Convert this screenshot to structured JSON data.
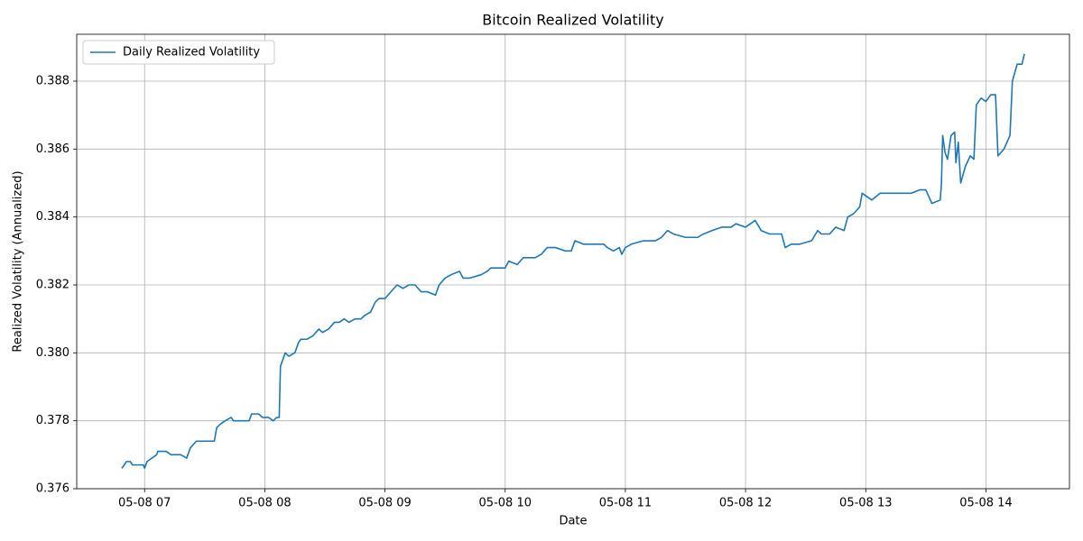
{
  "chart_data": {
    "type": "line",
    "title": "Bitcoin Realized Volatility",
    "x_label": "Date",
    "y_label": "Realized Volatility (Annualized)",
    "legend": "upper left",
    "grid": true,
    "xlim": [
      6.435,
      14.695
    ],
    "ylim": [
      0.376,
      0.38938
    ],
    "xticks": [
      {
        "value": 7,
        "label": "05-08 07"
      },
      {
        "value": 8,
        "label": "05-08 08"
      },
      {
        "value": 9,
        "label": "05-08 09"
      },
      {
        "value": 10,
        "label": "05-08 10"
      },
      {
        "value": 11,
        "label": "05-08 11"
      },
      {
        "value": 12,
        "label": "05-08 12"
      },
      {
        "value": 13,
        "label": "05-08 13"
      },
      {
        "value": 14,
        "label": "05-08 14"
      }
    ],
    "yticks": [
      0.376,
      0.378,
      {
        "value": 0.38,
        "label": "0.380"
      },
      0.382,
      0.384,
      0.386,
      0.388
    ],
    "x": [
      6.81,
      6.83,
      6.85,
      6.88,
      6.9,
      6.95,
      6.99,
      7.0,
      7.02,
      7.06,
      7.1,
      7.11,
      7.18,
      7.22,
      7.3,
      7.35,
      7.38,
      7.43,
      7.5,
      7.55,
      7.58,
      7.6,
      7.63,
      7.67,
      7.72,
      7.74,
      7.82,
      7.87,
      7.89,
      7.95,
      7.98,
      8.03,
      8.07,
      8.1,
      8.12,
      8.13,
      8.15,
      8.17,
      8.2,
      8.25,
      8.28,
      8.3,
      8.35,
      8.4,
      8.45,
      8.48,
      8.53,
      8.58,
      8.62,
      8.66,
      8.7,
      8.75,
      8.8,
      8.83,
      8.88,
      8.92,
      8.95,
      9.0,
      9.05,
      9.1,
      9.15,
      9.2,
      9.25,
      9.3,
      9.35,
      9.42,
      9.45,
      9.5,
      9.55,
      9.62,
      9.65,
      9.7,
      9.8,
      9.85,
      9.88,
      9.92,
      10.0,
      10.03,
      10.1,
      10.15,
      10.25,
      10.3,
      10.35,
      10.42,
      10.5,
      10.55,
      10.58,
      10.65,
      10.75,
      10.82,
      10.85,
      10.9,
      10.95,
      10.97,
      11.0,
      11.05,
      11.15,
      11.25,
      11.3,
      11.35,
      11.4,
      11.5,
      11.6,
      11.65,
      11.72,
      11.8,
      11.88,
      11.92,
      12.0,
      12.04,
      12.08,
      12.13,
      12.2,
      12.3,
      12.33,
      12.38,
      12.45,
      12.55,
      12.6,
      12.63,
      12.7,
      12.75,
      12.82,
      12.85,
      12.9,
      12.95,
      12.97,
      13.05,
      13.12,
      13.2,
      13.3,
      13.38,
      13.45,
      13.5,
      13.55,
      13.62,
      13.63,
      13.64,
      13.66,
      13.68,
      13.71,
      13.74,
      13.75,
      13.77,
      13.79,
      13.83,
      13.87,
      13.9,
      13.92,
      13.96,
      14.0,
      14.04,
      14.08,
      14.1,
      14.15,
      14.2,
      14.22,
      14.26,
      14.3,
      14.32
    ],
    "series": [
      {
        "name": "Daily Realized Volatility",
        "color": "#1f77b4",
        "values": [
          0.3766,
          0.3767,
          0.3768,
          0.3768,
          0.3767,
          0.3767,
          0.3767,
          0.3766,
          0.3768,
          0.3769,
          0.377,
          0.3771,
          0.3771,
          0.377,
          0.377,
          0.3769,
          0.3772,
          0.3774,
          0.3774,
          0.3774,
          0.3774,
          0.3778,
          0.3779,
          0.378,
          0.3781,
          0.378,
          0.378,
          0.378,
          0.3782,
          0.3782,
          0.3781,
          0.3781,
          0.378,
          0.3781,
          0.3781,
          0.3796,
          0.3798,
          0.38,
          0.3799,
          0.38,
          0.3803,
          0.3804,
          0.3804,
          0.3805,
          0.3807,
          0.3806,
          0.3807,
          0.3809,
          0.3809,
          0.381,
          0.3809,
          0.381,
          0.381,
          0.3811,
          0.3812,
          0.3815,
          0.3816,
          0.3816,
          0.3818,
          0.382,
          0.3819,
          0.382,
          0.382,
          0.3818,
          0.3818,
          0.3817,
          0.382,
          0.3822,
          0.3823,
          0.3824,
          0.3822,
          0.3822,
          0.3823,
          0.3824,
          0.3825,
          0.3825,
          0.3825,
          0.3827,
          0.3826,
          0.3828,
          0.3828,
          0.3829,
          0.3831,
          0.3831,
          0.383,
          0.383,
          0.3833,
          0.3832,
          0.3832,
          0.3832,
          0.3831,
          0.383,
          0.3831,
          0.3829,
          0.3831,
          0.3832,
          0.3833,
          0.3833,
          0.3834,
          0.3836,
          0.3835,
          0.3834,
          0.3834,
          0.3835,
          0.3836,
          0.3837,
          0.3837,
          0.3838,
          0.3837,
          0.3838,
          0.3839,
          0.3836,
          0.3835,
          0.3835,
          0.3831,
          0.3832,
          0.3832,
          0.3833,
          0.3836,
          0.3835,
          0.3835,
          0.3837,
          0.3836,
          0.384,
          0.3841,
          0.3843,
          0.3847,
          0.3845,
          0.3847,
          0.3847,
          0.3847,
          0.3847,
          0.3848,
          0.3848,
          0.3844,
          0.3845,
          0.385,
          0.3864,
          0.3859,
          0.3857,
          0.3864,
          0.3865,
          0.3856,
          0.3862,
          0.385,
          0.3855,
          0.3858,
          0.3857,
          0.3873,
          0.3875,
          0.3874,
          0.3876,
          0.3876,
          0.3858,
          0.386,
          0.3864,
          0.388,
          0.3885,
          0.3885,
          0.3888
        ]
      }
    ]
  }
}
